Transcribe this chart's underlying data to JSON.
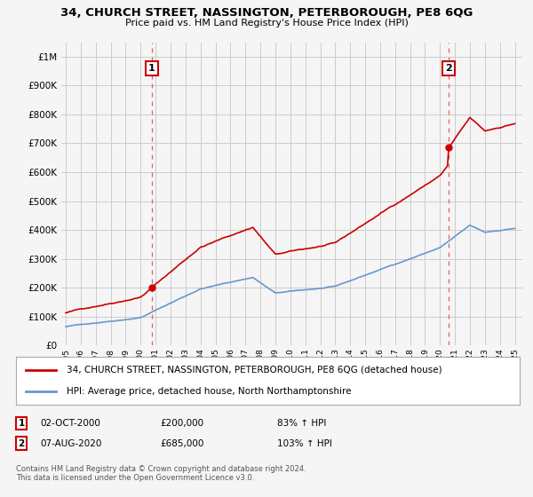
{
  "title": "34, CHURCH STREET, NASSINGTON, PETERBOROUGH, PE8 6QG",
  "subtitle": "Price paid vs. HM Land Registry's House Price Index (HPI)",
  "sale1_date": "02-OCT-2000",
  "sale1_price": 200000,
  "sale1_hpi_pct": "83% ↑ HPI",
  "sale2_date": "07-AUG-2020",
  "sale2_price": 685000,
  "sale2_hpi_pct": "103% ↑ HPI",
  "legend_label1": "34, CHURCH STREET, NASSINGTON, PETERBOROUGH, PE8 6QG (detached house)",
  "legend_label2": "HPI: Average price, detached house, North Northamptonshire",
  "footnote": "Contains HM Land Registry data © Crown copyright and database right 2024.\nThis data is licensed under the Open Government Licence v3.0.",
  "property_color": "#cc0000",
  "hpi_color": "#6699cc",
  "vline_color": "#e06060",
  "background_color": "#f5f5f5",
  "grid_color": "#cccccc",
  "ylim_min": 0,
  "ylim_max": 1050000,
  "sale1_year": 2000.75,
  "sale2_year": 2020.583
}
